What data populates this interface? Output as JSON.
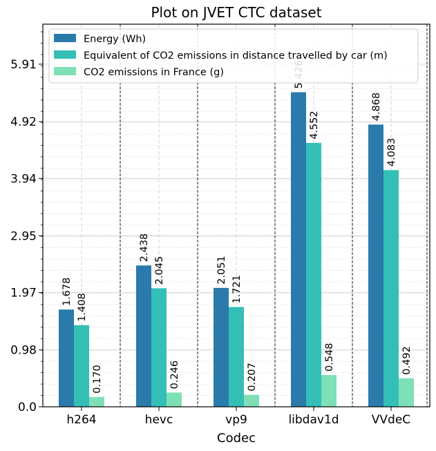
{
  "chart_data": {
    "type": "bar",
    "title": "Plot on JVET CTC dataset",
    "xlabel": "Codec",
    "ylabel": "",
    "categories": [
      "h264",
      "hevc",
      "vp9",
      "libdav1d",
      "VVdeC"
    ],
    "series": [
      {
        "name": "Energy (Wh)",
        "color": "#2a7aab",
        "values": [
          1.678,
          2.438,
          2.051,
          5.426,
          4.868
        ],
        "labels": [
          "1.678",
          "2.438",
          "2.051",
          "5.426",
          "4.868"
        ]
      },
      {
        "name": "Equivalent of CO2 emissions in distance travelled by car (m)",
        "color": "#33bfb6",
        "values": [
          1.408,
          2.045,
          1.721,
          4.552,
          4.083
        ],
        "labels": [
          "1.408",
          "2.045",
          "1.721",
          "4.552",
          "4.083"
        ]
      },
      {
        "name": "CO2 emissions in France (g)",
        "color": "#7fdfb6",
        "values": [
          0.17,
          0.246,
          0.207,
          0.548,
          0.492
        ],
        "labels": [
          "0.170",
          "0.246",
          "0.207",
          "0.548",
          "0.492"
        ]
      }
    ],
    "yticks": [
      0.0,
      0.98,
      1.97,
      2.95,
      3.94,
      4.92,
      5.91
    ],
    "ytick_labels": [
      "0.0",
      "0.98",
      "1.97",
      "2.95",
      "3.94",
      "4.92",
      "5.91"
    ],
    "ylim": [
      0,
      6.6
    ],
    "grid": true,
    "legend_position": "top-left"
  }
}
